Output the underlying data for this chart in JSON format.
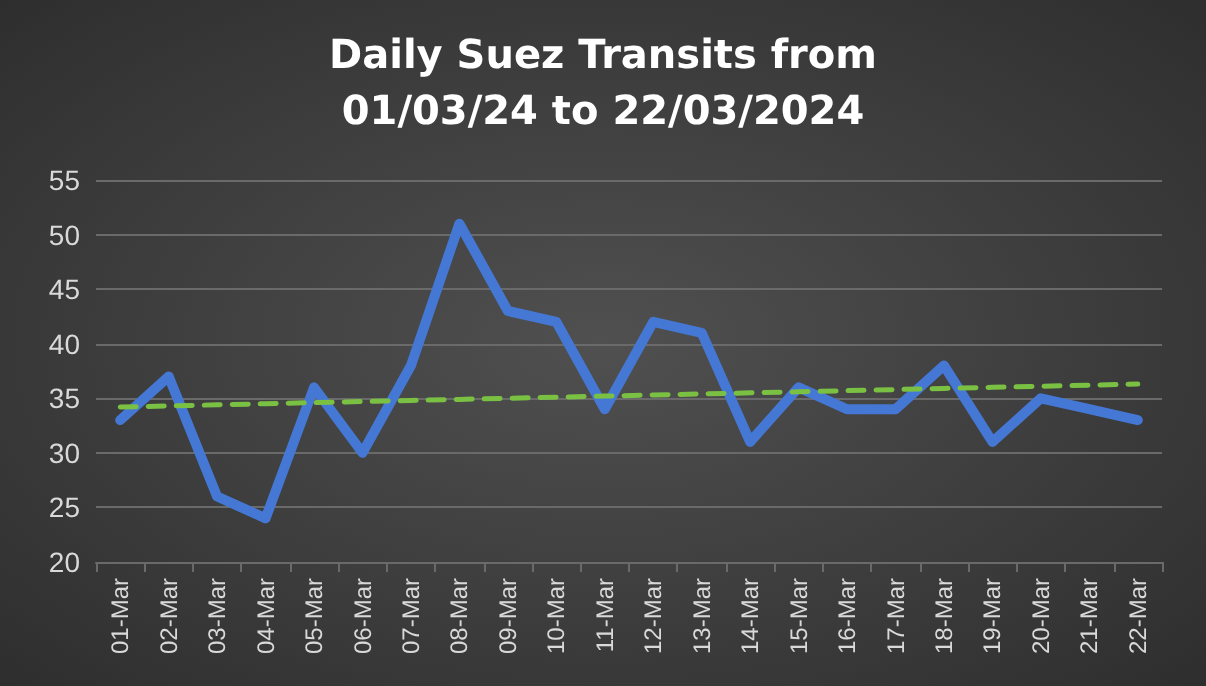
{
  "chart_data": {
    "type": "line",
    "title": "Daily Suez Transits from\n01/03/24 to 22/03/2024",
    "categories": [
      "01-Mar",
      "02-Mar",
      "03-Mar",
      "04-Mar",
      "05-Mar",
      "06-Mar",
      "07-Mar",
      "08-Mar",
      "09-Mar",
      "10-Mar",
      "11-Mar",
      "12-Mar",
      "13-Mar",
      "14-Mar",
      "15-Mar",
      "16-Mar",
      "17-Mar",
      "18-Mar",
      "19-Mar",
      "20-Mar",
      "21-Mar",
      "22-Mar"
    ],
    "series": [
      {
        "color": "#4478d4",
        "values": [
          33,
          37,
          26,
          24,
          36,
          30,
          38,
          51,
          43,
          42,
          34,
          42,
          41,
          31,
          36,
          34,
          34,
          38,
          31,
          35,
          34,
          33
        ]
      },
      {
        "color": "#7ac143",
        "line_style": "dashed",
        "values": [
          34.2,
          34.3,
          34.4,
          34.5,
          34.6,
          34.7,
          34.8,
          34.9,
          35.0,
          35.1,
          35.2,
          35.3,
          35.4,
          35.5,
          35.6,
          35.7,
          35.8,
          35.9,
          36.0,
          36.1,
          36.2,
          36.3
        ]
      }
    ],
    "ylim": [
      20,
      55
    ],
    "yticks": [
      20,
      25,
      30,
      35,
      40,
      45,
      50,
      55
    ],
    "grid": "y",
    "marker": "none",
    "line_style": "solid"
  }
}
